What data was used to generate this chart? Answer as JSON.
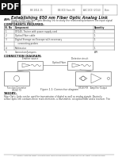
{
  "title": "Establishing 650 nm Fiber Optic Analog Link",
  "aim_label": "AIM:",
  "aim_line1": "Study of 650 nm Fiber Optic Analog link to study the relationship between the input signal",
  "aim_line2": "and received signal.",
  "components_header": "COMPONENTS REQUIRED:",
  "table_headers": [
    "Sl. No",
    "Component",
    "Quantity"
  ],
  "table_rows": [
    [
      "1",
      "OF240- Trainer with power supply cord",
      "1"
    ],
    [
      "2",
      "Optical Fiber cable",
      "1"
    ],
    [
      "3",
      "Digital Storage oscilloscope with necessary connecting probes",
      "1"
    ],
    [
      "4",
      "Multimeter",
      "1"
    ],
    [
      "5",
      "Connectors/Jumpers",
      "APR"
    ]
  ],
  "connections_header": "CONNECTION DIAGRAM:",
  "fig_caption": "Figure 1-1: Connection diagram",
  "theory_header": "THEORY:",
  "theory_line1": "Fiber Optic Links can be used for transmission of digital as well as analog signals. Basically",
  "theory_line2": "a fiber optic link contains three main elements, a transmitter, an optical fiber and a receiver. The",
  "footer_text": "St. Joseph Institute Dept. of Electronics and Communication Engineering for Dept. of Engineering",
  "header_mid1": "BE 2014-15",
  "header_mid2": "BE-ECE Sem-VII",
  "header_mid3": "AEC-ECE (2014)",
  "header_right": "Date:",
  "bg_color": "#ffffff",
  "pdf_bg": "#111111",
  "text_dark": "#222222",
  "text_mid": "#444444",
  "text_light": "#666666",
  "line_color": "#777777"
}
